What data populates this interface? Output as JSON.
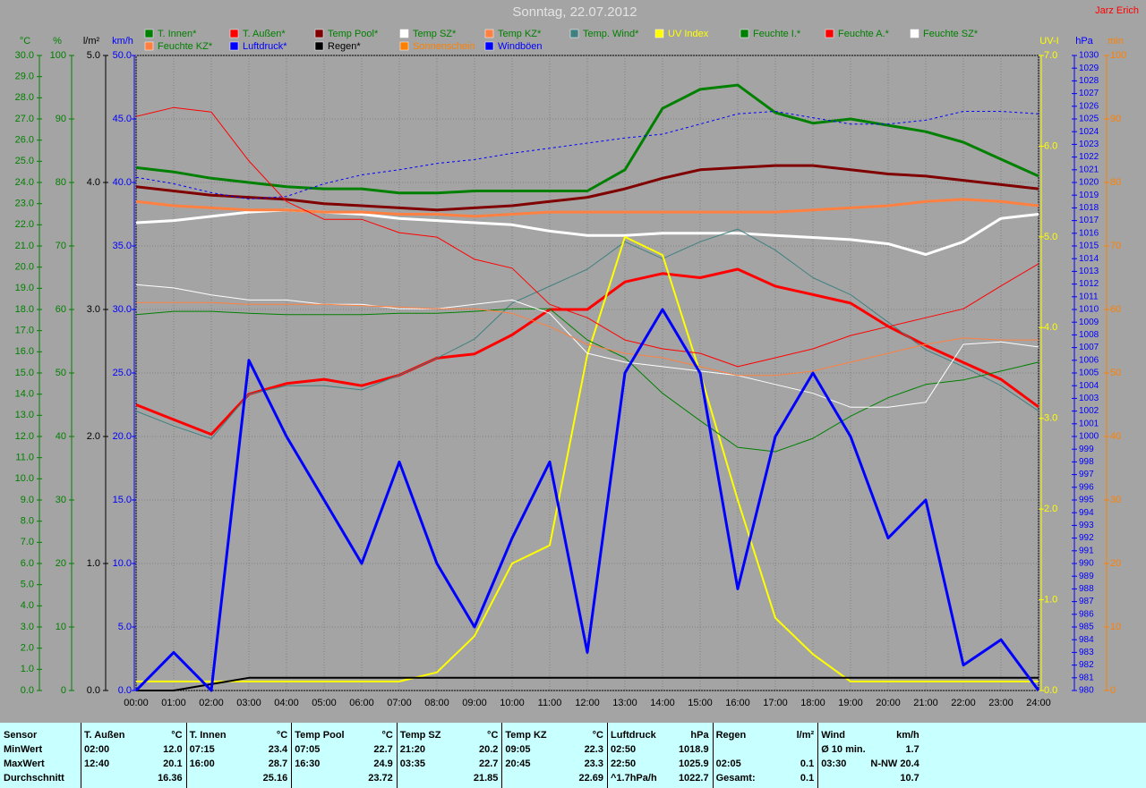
{
  "chart_data": {
    "type": "line",
    "title": "Sonntag, 22.07.2012",
    "author": "Jarz Erich",
    "grid": true,
    "x": [
      0,
      1,
      2,
      3,
      4,
      5,
      6,
      7,
      8,
      9,
      10,
      11,
      12,
      13,
      14,
      15,
      16,
      17,
      18,
      19,
      20,
      21,
      22,
      23,
      24
    ],
    "xlim": [
      0,
      24
    ],
    "xticks": [
      {
        "value": 0,
        "label": "00:00"
      },
      {
        "value": 1,
        "label": "01:00"
      },
      {
        "value": 2,
        "label": "02:00"
      },
      {
        "value": 3,
        "label": "03:00"
      },
      {
        "value": 4,
        "label": "04:00"
      },
      {
        "value": 5,
        "label": "05:00"
      },
      {
        "value": 6,
        "label": "06:00"
      },
      {
        "value": 7,
        "label": "07:00"
      },
      {
        "value": 8,
        "label": "08:00"
      },
      {
        "value": 9,
        "label": "09:00"
      },
      {
        "value": 10,
        "label": "10:00"
      },
      {
        "value": 11,
        "label": "11:00"
      },
      {
        "value": 12,
        "label": "12:00"
      },
      {
        "value": 13,
        "label": "13:00"
      },
      {
        "value": 14,
        "label": "14:00"
      },
      {
        "value": 15,
        "label": "15:00"
      },
      {
        "value": 16,
        "label": "16:00"
      },
      {
        "value": 17,
        "label": "17:00"
      },
      {
        "value": 18,
        "label": "18:00"
      },
      {
        "value": 19,
        "label": "19:00"
      },
      {
        "value": 20,
        "label": "20:00"
      },
      {
        "value": 21,
        "label": "21:00"
      },
      {
        "value": 22,
        "label": "22:00"
      },
      {
        "value": 23,
        "label": "23:00"
      },
      {
        "value": 24,
        "label": "24:00"
      }
    ],
    "axes": [
      {
        "label": "°C",
        "color": "#008000",
        "side": "left",
        "ylim": [
          0,
          30
        ],
        "yticks": [
          {
            "value": 0,
            "label": "0.0"
          },
          {
            "value": 1,
            "label": "1.0"
          },
          {
            "value": 2,
            "label": "2.0"
          },
          {
            "value": 3,
            "label": "3.0"
          },
          {
            "value": 4,
            "label": "4.0"
          },
          {
            "value": 5,
            "label": "5.0"
          },
          {
            "value": 6,
            "label": "6.0"
          },
          {
            "value": 7,
            "label": "7.0"
          },
          {
            "value": 8,
            "label": "8.0"
          },
          {
            "value": 9,
            "label": "9.0"
          },
          {
            "value": 10,
            "label": "10.0"
          },
          {
            "value": 11,
            "label": "11.0"
          },
          {
            "value": 12,
            "label": "12.0"
          },
          {
            "value": 13,
            "label": "13.0"
          },
          {
            "value": 14,
            "label": "14.0"
          },
          {
            "value": 15,
            "label": "15.0"
          },
          {
            "value": 16,
            "label": "16.0"
          },
          {
            "value": 17,
            "label": "17.0"
          },
          {
            "value": 18,
            "label": "18.0"
          },
          {
            "value": 19,
            "label": "19.0"
          },
          {
            "value": 20,
            "label": "20.0"
          },
          {
            "value": 21,
            "label": "21.0"
          },
          {
            "value": 22,
            "label": "22.0"
          },
          {
            "value": 23,
            "label": "23.0"
          },
          {
            "value": 24,
            "label": "24.0"
          },
          {
            "value": 25,
            "label": "25.0"
          },
          {
            "value": 26,
            "label": "26.0"
          },
          {
            "value": 27,
            "label": "27.0"
          },
          {
            "value": 28,
            "label": "28.0"
          },
          {
            "value": 29,
            "label": "29.0"
          },
          {
            "value": 30,
            "label": "30.0"
          }
        ]
      },
      {
        "label": "%",
        "color": "#008000",
        "side": "left",
        "ylim": [
          0,
          100
        ],
        "yticks": [
          0,
          10,
          20,
          30,
          40,
          50,
          60,
          70,
          80,
          90,
          100
        ]
      },
      {
        "label": "l/m²",
        "color": "#000000",
        "side": "left",
        "ylim": [
          0,
          5
        ],
        "yticks": [
          {
            "value": 0,
            "label": "0.0"
          },
          {
            "value": 1,
            "label": "1.0"
          },
          {
            "value": 2,
            "label": "2.0"
          },
          {
            "value": 3,
            "label": "3.0"
          },
          {
            "value": 4,
            "label": "4.0"
          },
          {
            "value": 5,
            "label": "5.0"
          }
        ]
      },
      {
        "label": "km/h",
        "color": "#0000ff",
        "side": "left",
        "ylim": [
          0,
          50
        ],
        "yticks": [
          {
            "value": 0,
            "label": "0.0"
          },
          {
            "value": 5,
            "label": "5.0"
          },
          {
            "value": 10,
            "label": "10.0"
          },
          {
            "value": 15,
            "label": "15.0"
          },
          {
            "value": 20,
            "label": "20.0"
          },
          {
            "value": 25,
            "label": "25.0"
          },
          {
            "value": 30,
            "label": "30.0"
          },
          {
            "value": 35,
            "label": "35.0"
          },
          {
            "value": 40,
            "label": "40.0"
          },
          {
            "value": 45,
            "label": "45.0"
          },
          {
            "value": 50,
            "label": "50.0"
          }
        ]
      },
      {
        "label": "UV-I",
        "color": "#ffff00",
        "side": "right",
        "ylim": [
          0,
          7
        ],
        "yticks": [
          {
            "value": 0,
            "label": "0.0"
          },
          {
            "value": 1,
            "label": "1.0"
          },
          {
            "value": 2,
            "label": "2.0"
          },
          {
            "value": 3,
            "label": "3.0"
          },
          {
            "value": 4,
            "label": "4.0"
          },
          {
            "value": 5,
            "label": "5.0"
          },
          {
            "value": 6,
            "label": "6.0"
          },
          {
            "value": 7,
            "label": "7.0"
          }
        ]
      },
      {
        "label": "hPa",
        "color": "#0000ff",
        "side": "right",
        "ylim": [
          980,
          1030
        ],
        "yticks": [
          980,
          981,
          982,
          983,
          984,
          985,
          986,
          987,
          988,
          989,
          990,
          991,
          992,
          993,
          994,
          995,
          996,
          997,
          998,
          999,
          1000,
          1001,
          1002,
          1003,
          1004,
          1005,
          1006,
          1007,
          1008,
          1009,
          1010,
          1011,
          1012,
          1013,
          1014,
          1015,
          1016,
          1017,
          1018,
          1019,
          1020,
          1021,
          1022,
          1023,
          1024,
          1025,
          1026,
          1027,
          1028,
          1029,
          1030
        ]
      },
      {
        "label": "min",
        "color": "#ff8000",
        "side": "right",
        "ylim": [
          0,
          100
        ],
        "yticks": [
          0,
          10,
          20,
          30,
          40,
          50,
          60,
          70,
          80,
          90,
          100
        ]
      }
    ],
    "series": [
      {
        "name": "T. Innen*",
        "color": "#008000",
        "axis": "°C",
        "width": 3,
        "values": [
          24.7,
          24.5,
          24.2,
          24.0,
          23.8,
          23.7,
          23.7,
          23.5,
          23.5,
          23.6,
          23.6,
          23.6,
          23.6,
          24.6,
          27.5,
          28.4,
          28.6,
          27.3,
          26.8,
          27.0,
          26.7,
          26.4,
          25.9,
          25.1,
          24.3
        ]
      },
      {
        "name": "T. Außen*",
        "color": "#ff0000",
        "axis": "°C",
        "width": 3,
        "values": [
          13.5,
          12.8,
          12.1,
          14.0,
          14.5,
          14.7,
          14.4,
          14.9,
          15.7,
          15.9,
          16.8,
          18.0,
          18.0,
          19.3,
          19.7,
          19.5,
          19.9,
          19.1,
          18.7,
          18.3,
          17.2,
          16.3,
          15.5,
          14.7,
          13.4
        ]
      },
      {
        "name": "Temp Pool*",
        "color": "#800000",
        "axis": "°C",
        "width": 3,
        "values": [
          23.8,
          23.6,
          23.4,
          23.3,
          23.2,
          23.0,
          22.9,
          22.8,
          22.7,
          22.8,
          22.9,
          23.1,
          23.3,
          23.7,
          24.2,
          24.6,
          24.7,
          24.8,
          24.8,
          24.6,
          24.4,
          24.3,
          24.1,
          23.9,
          23.7
        ]
      },
      {
        "name": "Temp SZ*",
        "color": "#ffffff",
        "axis": "°C",
        "width": 3,
        "values": [
          22.1,
          22.2,
          22.4,
          22.6,
          22.7,
          22.6,
          22.5,
          22.3,
          22.2,
          22.1,
          22.0,
          21.7,
          21.5,
          21.5,
          21.6,
          21.6,
          21.6,
          21.5,
          21.4,
          21.3,
          21.1,
          20.6,
          21.2,
          22.3,
          22.5
        ]
      },
      {
        "name": "Temp KZ*",
        "color": "#ff8040",
        "axis": "°C",
        "width": 3,
        "values": [
          23.1,
          22.9,
          22.8,
          22.7,
          22.7,
          22.6,
          22.6,
          22.5,
          22.5,
          22.4,
          22.5,
          22.6,
          22.6,
          22.6,
          22.6,
          22.6,
          22.6,
          22.6,
          22.7,
          22.8,
          22.9,
          23.1,
          23.2,
          23.1,
          22.9
        ]
      },
      {
        "name": "Temp. Wind*",
        "color": "#408080",
        "axis": "°C",
        "width": 1,
        "values": [
          13.2,
          12.5,
          11.9,
          14.0,
          14.4,
          14.4,
          14.2,
          14.9,
          15.7,
          16.6,
          18.3,
          19.1,
          19.9,
          21.2,
          20.4,
          21.2,
          21.8,
          20.8,
          19.5,
          18.7,
          17.4,
          16.1,
          15.3,
          14.4,
          13.2
        ]
      },
      {
        "name": "UV Index",
        "color": "#ffff00",
        "axis": "UV-I",
        "width": 2,
        "values": [
          0.1,
          0.1,
          0.1,
          0.1,
          0.1,
          0.1,
          0.1,
          0.1,
          0.2,
          0.6,
          1.4,
          1.6,
          3.7,
          5.0,
          4.8,
          3.5,
          2.1,
          0.8,
          0.4,
          0.1,
          0.1,
          0.1,
          0.1,
          0.1,
          0.1
        ]
      },
      {
        "name": "Feuchte I.*",
        "color": "#008000",
        "axis": "%",
        "width": 1,
        "values": [
          59.2,
          59.7,
          59.7,
          59.4,
          59.2,
          59.2,
          59.2,
          59.4,
          59.4,
          59.7,
          60.1,
          60.1,
          55.2,
          52.4,
          46.8,
          42.5,
          38.3,
          37.6,
          39.7,
          43.2,
          46.1,
          48.2,
          48.9,
          50.3,
          51.7
        ]
      },
      {
        "name": "Feuchte A.*",
        "color": "#ff0000",
        "axis": "%",
        "width": 1,
        "values": [
          90.4,
          91.8,
          91.1,
          83.4,
          77.0,
          74.2,
          74.2,
          72.1,
          71.4,
          67.9,
          66.5,
          60.8,
          58.7,
          55.2,
          53.8,
          53.1,
          51.0,
          52.4,
          53.8,
          55.9,
          57.3,
          58.7,
          60.1,
          63.7,
          67.2
        ]
      },
      {
        "name": "Feuchte SZ*",
        "color": "#ffffff",
        "axis": "%",
        "width": 1,
        "values": [
          63.9,
          63.4,
          62.3,
          61.5,
          61.5,
          60.8,
          60.8,
          60.1,
          60.1,
          60.8,
          61.5,
          59.4,
          53.1,
          51.7,
          51.0,
          50.3,
          49.6,
          48.2,
          46.8,
          44.6,
          44.6,
          45.4,
          54.5,
          54.9,
          54.1
        ]
      },
      {
        "name": "Feuchte KZ*",
        "color": "#ff8040",
        "axis": "%",
        "width": 1,
        "values": [
          61.1,
          61.1,
          61.1,
          60.8,
          60.8,
          60.8,
          60.6,
          60.4,
          60.1,
          60.1,
          59.4,
          57.3,
          54.5,
          53.1,
          52.4,
          51.0,
          49.6,
          49.6,
          50.3,
          51.7,
          53.1,
          54.5,
          55.5,
          55.2,
          55.2
        ]
      },
      {
        "name": "Luftdruck*",
        "color": "#0000ff",
        "axis": "hPa",
        "width": 1,
        "dashed": true,
        "values": [
          1020.4,
          1019.9,
          1019.2,
          1018.7,
          1018.9,
          1019.9,
          1020.6,
          1021.0,
          1021.5,
          1021.8,
          1022.3,
          1022.7,
          1023.1,
          1023.5,
          1023.8,
          1024.6,
          1025.4,
          1025.6,
          1025.1,
          1024.6,
          1024.6,
          1024.9,
          1025.6,
          1025.6,
          1025.4
        ]
      },
      {
        "name": "Regen*",
        "color": "#000000",
        "axis": "l/m²",
        "width": 2,
        "values": [
          0,
          0,
          0.05,
          0.1,
          0.1,
          0.1,
          0.1,
          0.1,
          0.1,
          0.1,
          0.1,
          0.1,
          0.1,
          0.1,
          0.1,
          0.1,
          0.1,
          0.1,
          0.1,
          0.1,
          0.1,
          0.1,
          0.1,
          0.1,
          0.1
        ]
      },
      {
        "name": "Sonnenschein",
        "color": "#ff8000",
        "axis": "min",
        "width": 2,
        "values": [
          null,
          null,
          null,
          null,
          null,
          null,
          null,
          null,
          null,
          null,
          null,
          null,
          null,
          null,
          null,
          null,
          null,
          null,
          null,
          null,
          null,
          null,
          null,
          null,
          null
        ]
      },
      {
        "name": "Windböen",
        "color": "#0000ff",
        "axis": "km/h",
        "width": 3,
        "values": [
          0,
          3,
          0,
          26,
          20,
          15,
          10,
          18,
          10,
          5,
          12,
          18,
          3,
          25,
          30,
          25,
          8,
          20,
          25,
          20,
          12,
          15,
          2,
          4,
          0
        ]
      }
    ]
  },
  "table": {
    "corner": "Sensor",
    "columns": [
      [
        "T. Außen",
        "°C"
      ],
      [
        "T. Innen",
        "°C"
      ],
      [
        "Temp Pool",
        "°C"
      ],
      [
        "Temp SZ",
        "°C"
      ],
      [
        "Temp KZ",
        "°C"
      ],
      [
        "Luftdruck",
        "hPa"
      ],
      [
        "Regen",
        "l/m²"
      ],
      [
        "Wind",
        "km/h"
      ]
    ],
    "row_labels": [
      "MinWert",
      "MaxWert",
      "Durchschnitt"
    ],
    "rows": [
      [
        [
          "02:00",
          "12.0"
        ],
        [
          "07:15",
          "23.4"
        ],
        [
          "07:05",
          "22.7"
        ],
        [
          "21:20",
          "20.2"
        ],
        [
          "09:05",
          "22.3"
        ],
        [
          "02:50",
          "1018.9"
        ],
        [
          null,
          null
        ],
        [
          "Ø 10 min.",
          "1.7"
        ]
      ],
      [
        [
          "12:40",
          "20.1"
        ],
        [
          "16:00",
          "28.7"
        ],
        [
          "16:30",
          "24.9"
        ],
        [
          "03:35",
          "22.7"
        ],
        [
          "20:45",
          "23.3"
        ],
        [
          "22:50",
          "1025.9"
        ],
        [
          "02:05",
          "0.1"
        ],
        [
          "03:30",
          "N-NW 20.4"
        ]
      ],
      [
        [
          null,
          "16.36"
        ],
        [
          null,
          "25.16"
        ],
        [
          null,
          "23.72"
        ],
        [
          null,
          "21.85"
        ],
        [
          null,
          "22.69"
        ],
        [
          "^1.7hPa/h",
          "1022.7"
        ],
        [
          "Gesamt:",
          "0.1"
        ],
        [
          null,
          "10.7"
        ]
      ]
    ]
  }
}
